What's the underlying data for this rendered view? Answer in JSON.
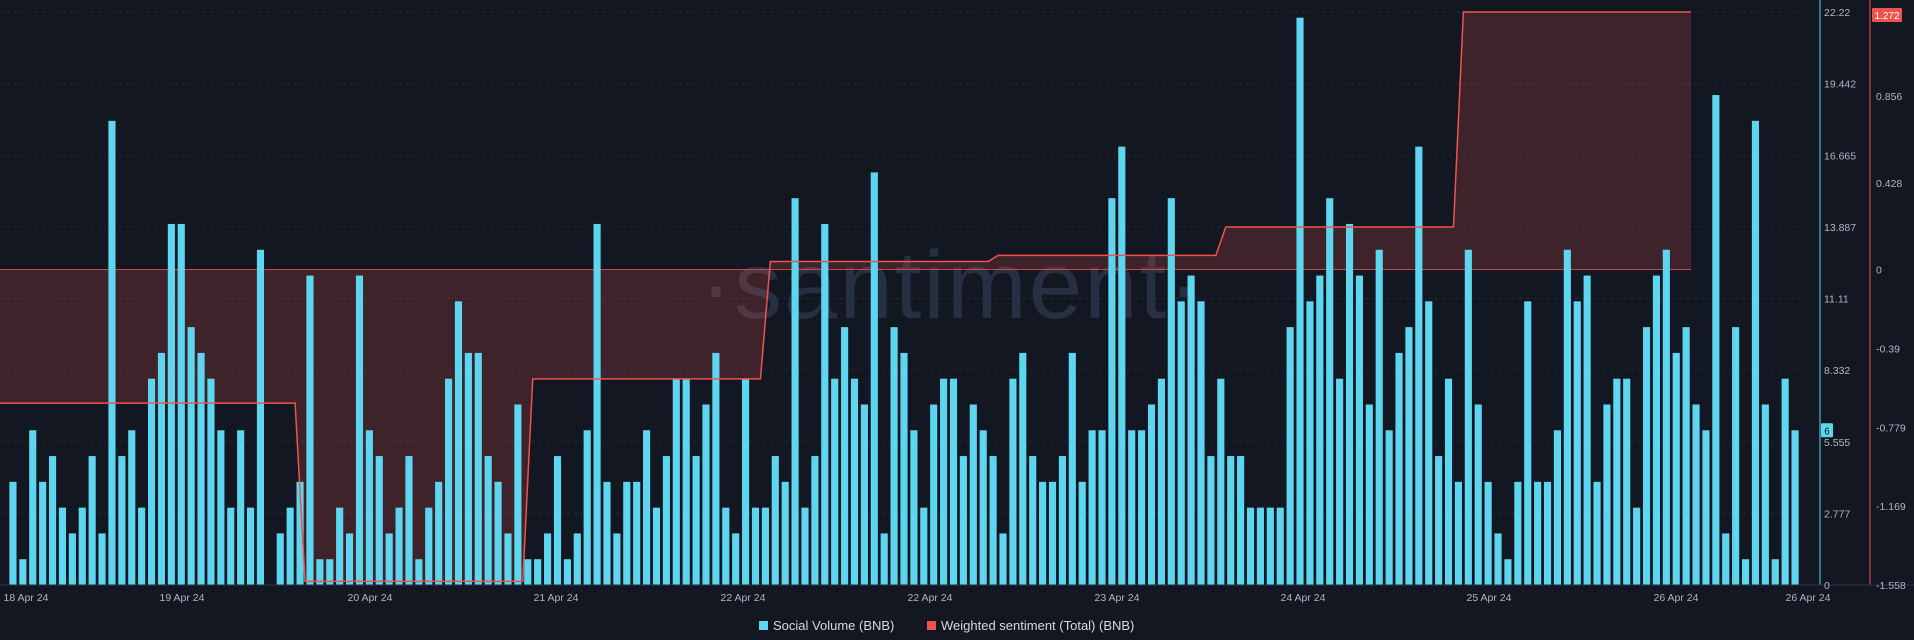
{
  "watermark": "·santiment·",
  "chart_data": {
    "type": "bar",
    "title": "",
    "x_tick_labels": [
      "18 Apr 24",
      "19 Apr 24",
      "20 Apr 24",
      "21 Apr 24",
      "22 Apr 24",
      "22 Apr 24",
      "23 Apr 24",
      "24 Apr 24",
      "25 Apr 24",
      "26 Apr 24",
      "26 Apr 24"
    ],
    "y_left_ticks": [
      "22.22",
      "19.442",
      "16.665",
      "13.887",
      "11.11",
      "8.332",
      "5.555",
      "2.777",
      "0"
    ],
    "y_left_range": [
      0,
      22.22
    ],
    "y_right_ticks": [
      "1.272",
      "0.856",
      "0.428",
      "0",
      "-0.39",
      "-0.779",
      "-1.169",
      "-1.558"
    ],
    "y_right_range": [
      -1.558,
      1.272
    ],
    "current_values": {
      "left": "6",
      "right": "1.272"
    },
    "grid": true,
    "legend_position": "bottom-center",
    "colors": {
      "bars": "#5fd6f0",
      "line": "#ef5350",
      "background": "#131722",
      "left_badge": "#5fd6f0",
      "right_badge": "#ef5350"
    },
    "series": [
      {
        "name": "Social Volume (BNB)",
        "type": "bar",
        "values": [
          4,
          1,
          6,
          4,
          5,
          3,
          2,
          3,
          5,
          2,
          18,
          5,
          6,
          3,
          8,
          9,
          14,
          14,
          10,
          9,
          8,
          6,
          3,
          6,
          3,
          13,
          0,
          2,
          3,
          4,
          12,
          1,
          1,
          3,
          2,
          12,
          6,
          5,
          2,
          3,
          5,
          1,
          3,
          4,
          8,
          11,
          9,
          9,
          5,
          4,
          2,
          7,
          1,
          1,
          2,
          5,
          1,
          2,
          6,
          14,
          4,
          2,
          4,
          4,
          6,
          3,
          5,
          8,
          8,
          5,
          7,
          9,
          3,
          2,
          8,
          3,
          3,
          5,
          4,
          15,
          3,
          5,
          14,
          8,
          10,
          8,
          7,
          16,
          2,
          10,
          9,
          6,
          3,
          7,
          8,
          8,
          5,
          7,
          6,
          5,
          2,
          8,
          9,
          5,
          4,
          4,
          5,
          9,
          4,
          6,
          6,
          15,
          17,
          6,
          6,
          7,
          8,
          15,
          11,
          12,
          11,
          5,
          8,
          5,
          5,
          3,
          3,
          3,
          3,
          10,
          22,
          11,
          12,
          15,
          8,
          14,
          12,
          7,
          13,
          6,
          9,
          10,
          17,
          11,
          5,
          8,
          4,
          13,
          7,
          4,
          2,
          1,
          4,
          11,
          4,
          4,
          6,
          13,
          11,
          12,
          4,
          7,
          8,
          8,
          3,
          10,
          12,
          13,
          9,
          10,
          7,
          6,
          19,
          2,
          10,
          1,
          18,
          7,
          1,
          8,
          6
        ],
        "ylim": [
          0,
          22.22
        ]
      },
      {
        "name": "Weighted sentiment (Total) (BNB)",
        "type": "step-line",
        "points": [
          [
            0,
            -0.66
          ],
          [
            29,
            -0.66
          ],
          [
            30,
            -1.54
          ],
          [
            52,
            -1.54
          ],
          [
            53,
            -0.54
          ],
          [
            76,
            -0.54
          ],
          [
            77,
            0.04
          ],
          [
            99,
            0.04
          ],
          [
            100,
            0.07
          ],
          [
            122,
            0.07
          ],
          [
            123,
            0.21
          ],
          [
            146,
            0.21
          ],
          [
            147,
            1.272
          ],
          [
            170,
            1.272
          ]
        ],
        "ylim": [
          -1.558,
          1.272
        ]
      }
    ]
  }
}
